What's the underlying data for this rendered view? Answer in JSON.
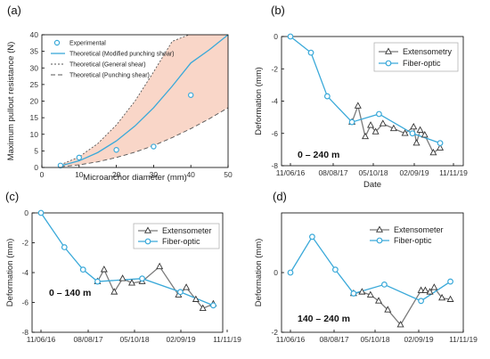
{
  "colors": {
    "cyan": "#3aa9d9",
    "gray": "#7a7a7a",
    "fill": "#f9d6c8",
    "dark": "#333333"
  },
  "chart_data": [
    {
      "panel": "(a)",
      "type": "line",
      "xlabel": "Microanchor diameter (mm)",
      "ylabel": "Maximum pullout resistance (N)",
      "xlim": [
        0,
        50
      ],
      "ylim": [
        0,
        40
      ],
      "xticks": [
        0,
        10,
        20,
        30,
        40,
        50
      ],
      "yticks": [
        0,
        5,
        10,
        15,
        20,
        25,
        30,
        35,
        40
      ],
      "legend_position": "top-left",
      "shaded_band": {
        "between": [
          "Theoretical (General shear)",
          "Theoretical (Punching shear)"
        ]
      },
      "series": [
        {
          "name": "Experimental",
          "style": "circle-markers",
          "x": [
            5,
            10,
            20,
            30,
            40
          ],
          "y": [
            0.6,
            3.0,
            5.3,
            6.3,
            21.8
          ]
        },
        {
          "name": "Theoretical (Modified punching shear)",
          "style": "solid",
          "x": [
            5,
            10,
            15,
            20,
            25,
            30,
            35,
            40,
            45,
            50
          ],
          "y": [
            0.5,
            2.0,
            4.5,
            8.0,
            12.5,
            18.0,
            24.5,
            31.5,
            35.5,
            40.0
          ]
        },
        {
          "name": "Theoretical (General shear)",
          "style": "short-dash",
          "x": [
            5,
            10,
            15,
            20,
            25,
            30,
            35,
            39.5
          ],
          "y": [
            0.8,
            3.2,
            7.2,
            12.8,
            20.0,
            28.8,
            38.0,
            40.0
          ]
        },
        {
          "name": "Theoretical (Punching shear)",
          "style": "long-dash",
          "x": [
            5,
            10,
            15,
            20,
            25,
            30,
            35,
            40,
            45,
            50
          ],
          "y": [
            0.2,
            0.8,
            1.7,
            3.0,
            4.6,
            6.6,
            9.0,
            11.7,
            14.7,
            18.0
          ]
        }
      ]
    },
    {
      "panel": "(b)",
      "type": "line",
      "xlabel": "Date",
      "ylabel": "Deformation (mm)",
      "annotation": "0 – 240 m",
      "x_tick_labels": [
        "11/06/16",
        "08/08/17",
        "05/10/18",
        "02/09/19",
        "11/11/19"
      ],
      "ylim": [
        -8,
        0
      ],
      "yticks": [
        0,
        -2,
        -4,
        -6,
        -8
      ],
      "legend_position": "top-right",
      "series": [
        {
          "name": "Extensometry",
          "marker": "triangle",
          "x": [
            "2017-09-25",
            "2017-11-10",
            "2018-01-05",
            "2018-02-15",
            "2018-03-25",
            "2018-05-20",
            "2018-08-10",
            "2018-11-05",
            "2019-01-10",
            "2019-02-01",
            "2019-03-01",
            "2019-04-05",
            "2019-06-10",
            "2019-08-01"
          ],
          "y": [
            -5.3,
            -4.3,
            -6.2,
            -5.5,
            -5.9,
            -5.4,
            -5.7,
            -6.0,
            -5.6,
            -6.6,
            -5.8,
            -6.1,
            -7.2,
            -6.9
          ]
        },
        {
          "name": "Fiber-optic",
          "marker": "circle",
          "x": [
            "2016-06-11",
            "2016-11-15",
            "2017-03-20",
            "2017-09-25",
            "2018-04-20",
            "2019-01-01",
            "2019-08-01"
          ],
          "y": [
            0.0,
            -1.0,
            -3.7,
            -5.3,
            -4.8,
            -6.0,
            -6.6
          ]
        }
      ]
    },
    {
      "panel": "(c)",
      "type": "line",
      "xlabel": "",
      "ylabel": "Deformation (mm)",
      "annotation": "0 – 140 m",
      "x_tick_labels": [
        "11/06/16",
        "08/08/17",
        "05/10/18",
        "02/09/19",
        "11/11/19"
      ],
      "ylim": [
        -8,
        0
      ],
      "yticks": [
        0,
        -2,
        -4,
        -6,
        -8
      ],
      "legend_position": "top-right",
      "series": [
        {
          "name": "Extensometer",
          "marker": "triangle",
          "x": [
            "2017-06-25",
            "2017-08-08",
            "2017-10-15",
            "2017-12-10",
            "2018-02-10",
            "2018-04-20",
            "2018-08-15",
            "2018-12-20",
            "2019-02-10",
            "2019-04-15",
            "2019-06-01",
            "2019-08-10"
          ],
          "y": [
            -4.6,
            -3.8,
            -5.3,
            -4.4,
            -4.7,
            -4.6,
            -3.6,
            -5.5,
            -5.0,
            -5.8,
            -6.4,
            -6.1
          ]
        },
        {
          "name": "Fiber-optic",
          "marker": "circle",
          "x": [
            "2016-06-11",
            "2016-11-15",
            "2017-03-20",
            "2017-06-25",
            "2018-04-20",
            "2019-01-01",
            "2019-08-10"
          ],
          "y": [
            0.0,
            -2.3,
            -3.8,
            -4.6,
            -4.4,
            -5.3,
            -6.2
          ]
        }
      ]
    },
    {
      "panel": "(d)",
      "type": "line",
      "xlabel": "",
      "ylabel": "Deformation (mm)",
      "annotation": "140 – 240 m",
      "x_tick_labels": [
        "11/06/16",
        "08/08/17",
        "05/10/18",
        "02/09/19",
        "11/11/19"
      ],
      "ylim": [
        -2,
        2
      ],
      "yticks": [
        0,
        -2
      ],
      "legend_position": "top-right",
      "series": [
        {
          "name": "Extensometer",
          "marker": "triangle",
          "x": [
            "2017-09-10",
            "2017-11-10",
            "2018-01-10",
            "2018-03-10",
            "2018-05-15",
            "2018-08-15",
            "2019-01-10",
            "2019-02-10",
            "2019-03-15",
            "2019-04-15",
            "2019-06-10",
            "2019-08-10"
          ],
          "y": [
            -0.7,
            -0.65,
            -0.75,
            -0.95,
            -1.25,
            -1.75,
            -0.6,
            -0.6,
            -0.65,
            -0.5,
            -0.85,
            -0.9
          ]
        },
        {
          "name": "Fiber-optic",
          "marker": "circle",
          "x": [
            "2016-06-11",
            "2016-11-15",
            "2017-05-01",
            "2017-09-10",
            "2018-04-20",
            "2019-01-10",
            "2019-08-10"
          ],
          "y": [
            0.0,
            1.2,
            0.1,
            -0.7,
            -0.4,
            -0.95,
            -0.3
          ]
        }
      ]
    }
  ]
}
